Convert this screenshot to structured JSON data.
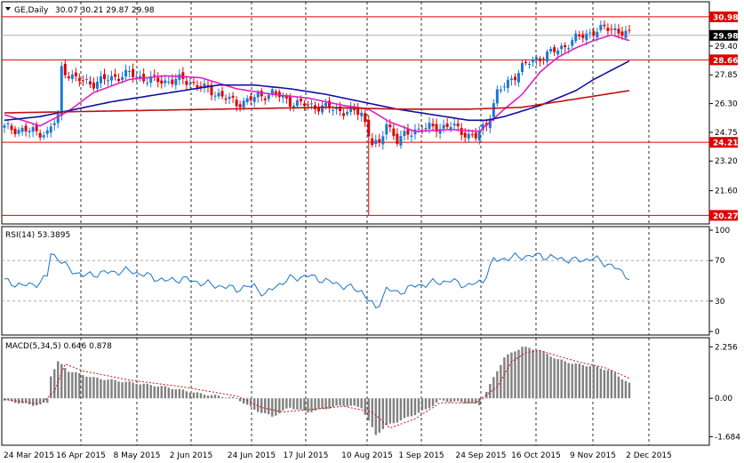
{
  "chart_data": [
    {
      "type": "candlestick",
      "title": "GE,Daily",
      "ohlc_header": "30.07 30.21 29.87 29.98",
      "ylim": [
        20.0,
        31.6
      ],
      "y_ticks": [
        "29.40",
        "27.85",
        "26.30",
        "24.75",
        "23.20",
        "21.60"
      ],
      "y_tick_values": [
        29.4,
        27.85,
        26.3,
        24.75,
        23.2,
        21.6
      ],
      "current_price": 29.98,
      "current_price_label": "29.98",
      "horizontal_levels": [
        {
          "value": 30.98,
          "label": "30.98"
        },
        {
          "value": 28.66,
          "label": "28.66"
        },
        {
          "value": 24.21,
          "label": "24.21"
        },
        {
          "value": 20.27,
          "label": "20.27"
        }
      ],
      "x_labels": [
        "24 Mar 2015",
        "16 Apr 2015",
        "8 May 2015",
        "2 Jun 2015",
        "24 Jun 2015",
        "17 Jul 2015",
        "10 Aug 2015",
        "1 Sep 2015",
        "24 Sep 2015",
        "16 Oct 2015",
        "9 Nov 2015",
        "2 Dec 2015"
      ],
      "close_path": [
        [
          0,
          25.0
        ],
        [
          8,
          24.8
        ],
        [
          12,
          24.7
        ],
        [
          15,
          25.6
        ],
        [
          16,
          28.2
        ],
        [
          20,
          27.6
        ],
        [
          25,
          27.4
        ],
        [
          30,
          27.7
        ],
        [
          35,
          27.9
        ],
        [
          40,
          27.6
        ],
        [
          45,
          27.5
        ],
        [
          50,
          27.6
        ],
        [
          55,
          27.2
        ],
        [
          60,
          26.8
        ],
        [
          65,
          26.3
        ],
        [
          70,
          26.6
        ],
        [
          75,
          26.9
        ],
        [
          80,
          26.4
        ],
        [
          85,
          26.2
        ],
        [
          90,
          26.1
        ],
        [
          95,
          25.9
        ],
        [
          100,
          25.8
        ],
        [
          103,
          24.2
        ],
        [
          105,
          24.0
        ],
        [
          107,
          25.3
        ],
        [
          110,
          24.3
        ],
        [
          115,
          24.9
        ],
        [
          120,
          25.0
        ],
        [
          125,
          25.1
        ],
        [
          130,
          24.6
        ],
        [
          132,
          24.5
        ],
        [
          135,
          25.2
        ],
        [
          138,
          26.9
        ],
        [
          141,
          27.4
        ],
        [
          145,
          28.3
        ],
        [
          150,
          28.8
        ],
        [
          155,
          29.2
        ],
        [
          160,
          29.8
        ],
        [
          165,
          30.2
        ],
        [
          170,
          30.4
        ],
        [
          173,
          30.1
        ],
        [
          175,
          29.98
        ]
      ],
      "series": [
        {
          "name": "",
          "color": "#e020c0",
          "path": [
            [
              0,
              25.7
            ],
            [
              10,
              25.1
            ],
            [
              18,
              25.9
            ],
            [
              25,
              26.9
            ],
            [
              35,
              27.6
            ],
            [
              45,
              27.8
            ],
            [
              55,
              27.7
            ],
            [
              65,
              27.1
            ],
            [
              75,
              26.8
            ],
            [
              85,
              26.6
            ],
            [
              95,
              26.2
            ],
            [
              102,
              26.0
            ],
            [
              108,
              25.3
            ],
            [
              115,
              24.8
            ],
            [
              125,
              24.9
            ],
            [
              133,
              24.8
            ],
            [
              140,
              26.0
            ],
            [
              145,
              26.8
            ],
            [
              150,
              28.0
            ],
            [
              155,
              28.8
            ],
            [
              160,
              29.3
            ],
            [
              165,
              29.7
            ],
            [
              170,
              30.0
            ],
            [
              175,
              29.7
            ]
          ]
        },
        {
          "name": "",
          "color": "#1010a0",
          "path": [
            [
              0,
              25.4
            ],
            [
              10,
              25.6
            ],
            [
              20,
              26.0
            ],
            [
              30,
              26.4
            ],
            [
              40,
              26.7
            ],
            [
              50,
              27.0
            ],
            [
              60,
              27.3
            ],
            [
              70,
              27.3
            ],
            [
              80,
              27.1
            ],
            [
              90,
              26.8
            ],
            [
              100,
              26.4
            ],
            [
              110,
              26.0
            ],
            [
              120,
              25.7
            ],
            [
              130,
              25.4
            ],
            [
              135,
              25.4
            ],
            [
              140,
              25.6
            ],
            [
              150,
              26.2
            ],
            [
              160,
              27.0
            ],
            [
              165,
              27.6
            ],
            [
              170,
              28.1
            ],
            [
              175,
              28.6
            ]
          ]
        },
        {
          "name": "",
          "color": "#c01010",
          "path": [
            [
              0,
              25.8
            ],
            [
              30,
              25.9
            ],
            [
              60,
              26.0
            ],
            [
              90,
              26.1
            ],
            [
              110,
              26.0
            ],
            [
              130,
              26.0
            ],
            [
              145,
              26.1
            ],
            [
              155,
              26.4
            ],
            [
              165,
              26.7
            ],
            [
              175,
              27.0
            ]
          ]
        }
      ]
    },
    {
      "type": "line",
      "title": "RSI(14) 53.3895",
      "ylim": [
        0,
        100
      ],
      "y_ticks": [
        "100",
        "70",
        "30",
        "0"
      ],
      "y_tick_values": [
        100,
        70,
        30,
        0
      ],
      "levels": [
        70,
        30
      ],
      "series": [
        {
          "name": "",
          "color": "#1874c8",
          "path": [
            [
              0,
              50
            ],
            [
              5,
              45
            ],
            [
              10,
              48
            ],
            [
              12,
              55
            ],
            [
              13,
              78
            ],
            [
              15,
              72
            ],
            [
              18,
              62
            ],
            [
              22,
              55
            ],
            [
              28,
              58
            ],
            [
              35,
              60
            ],
            [
              40,
              55
            ],
            [
              45,
              50
            ],
            [
              50,
              52
            ],
            [
              55,
              48
            ],
            [
              60,
              45
            ],
            [
              65,
              42
            ],
            [
              70,
              45
            ],
            [
              73,
              36
            ],
            [
              76,
              45
            ],
            [
              80,
              52
            ],
            [
              85,
              55
            ],
            [
              90,
              50
            ],
            [
              95,
              45
            ],
            [
              100,
              40
            ],
            [
              104,
              22
            ],
            [
              107,
              42
            ],
            [
              110,
              38
            ],
            [
              115,
              45
            ],
            [
              120,
              48
            ],
            [
              125,
              50
            ],
            [
              130,
              45
            ],
            [
              134,
              50
            ],
            [
              137,
              70
            ],
            [
              140,
              72
            ],
            [
              145,
              74
            ],
            [
              150,
              75
            ],
            [
              155,
              72
            ],
            [
              160,
              70
            ],
            [
              165,
              72
            ],
            [
              170,
              65
            ],
            [
              175,
              53.4
            ]
          ]
        }
      ]
    },
    {
      "type": "bar",
      "title": "MACD(5,34,5) 0.646 0.878",
      "ylim": [
        -1.9,
        2.5
      ],
      "y_ticks": [
        "2.256",
        "0.00",
        "-1.684"
      ],
      "y_tick_values": [
        2.256,
        0.0,
        -1.684
      ],
      "series": [
        {
          "name": "",
          "color": "#808080",
          "path": [
            [
              0,
              -0.1
            ],
            [
              8,
              -0.3
            ],
            [
              12,
              -0.2
            ],
            [
              13,
              1.0
            ],
            [
              15,
              1.6
            ],
            [
              18,
              1.2
            ],
            [
              25,
              0.9
            ],
            [
              35,
              0.7
            ],
            [
              45,
              0.5
            ],
            [
              55,
              0.2
            ],
            [
              65,
              0.0
            ],
            [
              70,
              -0.5
            ],
            [
              75,
              -0.8
            ],
            [
              80,
              -0.4
            ],
            [
              85,
              -0.6
            ],
            [
              95,
              -0.3
            ],
            [
              100,
              -0.4
            ],
            [
              104,
              -1.6
            ],
            [
              107,
              -1.2
            ],
            [
              112,
              -0.9
            ],
            [
              118,
              -0.5
            ],
            [
              122,
              -0.1
            ],
            [
              130,
              -0.2
            ],
            [
              133,
              -0.3
            ],
            [
              136,
              0.6
            ],
            [
              140,
              1.8
            ],
            [
              145,
              2.256
            ],
            [
              150,
              2.1
            ],
            [
              155,
              1.7
            ],
            [
              160,
              1.5
            ],
            [
              165,
              1.4
            ],
            [
              170,
              1.2
            ],
            [
              175,
              0.646
            ]
          ]
        },
        {
          "name": "",
          "color": "#d01010",
          "path": [
            [
              0,
              -0.05
            ],
            [
              10,
              -0.25
            ],
            [
              14,
              0.3
            ],
            [
              17,
              1.5
            ],
            [
              22,
              1.2
            ],
            [
              35,
              0.8
            ],
            [
              50,
              0.5
            ],
            [
              65,
              0.1
            ],
            [
              72,
              -0.4
            ],
            [
              78,
              -0.6
            ],
            [
              85,
              -0.5
            ],
            [
              95,
              -0.35
            ],
            [
              103,
              -0.6
            ],
            [
              108,
              -1.3
            ],
            [
              115,
              -0.9
            ],
            [
              122,
              -0.2
            ],
            [
              132,
              -0.2
            ],
            [
              138,
              0.5
            ],
            [
              142,
              1.6
            ],
            [
              146,
              2.0
            ],
            [
              150,
              2.1
            ],
            [
              156,
              1.8
            ],
            [
              162,
              1.55
            ],
            [
              168,
              1.35
            ],
            [
              175,
              0.878
            ]
          ]
        }
      ]
    }
  ]
}
